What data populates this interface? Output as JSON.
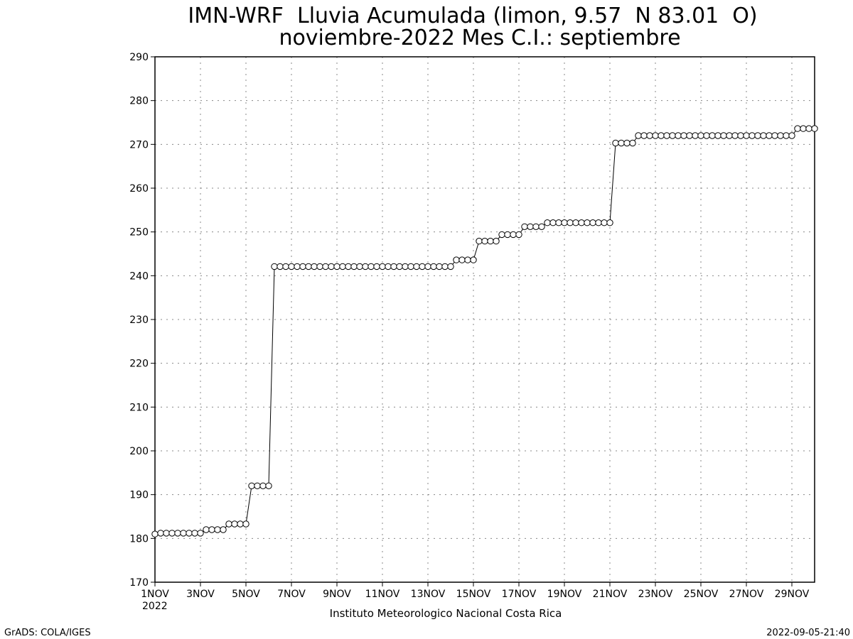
{
  "chart_data": {
    "type": "line",
    "title_line1": "IMN-WRF  Lluvia Acumulada (limon, 9.57  N 83.01  O)",
    "title_line2": "noviembre-2022 Mes C.I.: septiembre",
    "xlabel": "",
    "ylabel": "",
    "ylim": [
      170,
      290
    ],
    "yticks": [
      170,
      180,
      190,
      200,
      210,
      220,
      230,
      240,
      250,
      260,
      270,
      280,
      290
    ],
    "xlim": [
      1,
      30
    ],
    "xticks": [
      {
        "day": 1,
        "label": "1NOV"
      },
      {
        "day": 3,
        "label": "3NOV"
      },
      {
        "day": 5,
        "label": "5NOV"
      },
      {
        "day": 7,
        "label": "7NOV"
      },
      {
        "day": 9,
        "label": "9NOV"
      },
      {
        "day": 11,
        "label": "11NOV"
      },
      {
        "day": 13,
        "label": "13NOV"
      },
      {
        "day": 15,
        "label": "15NOV"
      },
      {
        "day": 17,
        "label": "17NOV"
      },
      {
        "day": 19,
        "label": "19NOV"
      },
      {
        "day": 21,
        "label": "21NOV"
      },
      {
        "day": 23,
        "label": "23NOV"
      },
      {
        "day": 25,
        "label": "25NOV"
      },
      {
        "day": 27,
        "label": "27NOV"
      },
      {
        "day": 29,
        "label": "29NOV"
      }
    ],
    "year_label": "2022",
    "grid": true,
    "marker": "open-circle",
    "series": [
      {
        "x": [
          1.0,
          1.25,
          1.5,
          1.75,
          2.0,
          2.25,
          2.5,
          2.75,
          3.0,
          3.25,
          3.5,
          3.75,
          4.0,
          4.25,
          4.5,
          4.75,
          5.0,
          5.25,
          5.5,
          5.75,
          6.0,
          6.25,
          6.5,
          6.75,
          7.0,
          7.25,
          7.5,
          7.75,
          8.0,
          8.25,
          8.5,
          8.75,
          9.0,
          9.25,
          9.5,
          9.75,
          10.0,
          10.25,
          10.5,
          10.75,
          11.0,
          11.25,
          11.5,
          11.75,
          12.0,
          12.25,
          12.5,
          12.75,
          13.0,
          13.25,
          13.5,
          13.75,
          14.0,
          14.25,
          14.5,
          14.75,
          15.0,
          15.25,
          15.5,
          15.75,
          16.0,
          16.25,
          16.5,
          16.75,
          17.0,
          17.25,
          17.5,
          17.75,
          18.0,
          18.25,
          18.5,
          18.75,
          19.0,
          19.25,
          19.5,
          19.75,
          20.0,
          20.25,
          20.5,
          20.75,
          21.0,
          21.25,
          21.5,
          21.75,
          22.0,
          22.25,
          22.5,
          22.75,
          23.0,
          23.25,
          23.5,
          23.75,
          24.0,
          24.25,
          24.5,
          24.75,
          25.0,
          25.25,
          25.5,
          25.75,
          26.0,
          26.25,
          26.5,
          26.75,
          27.0,
          27.25,
          27.5,
          27.75,
          28.0,
          28.25,
          28.5,
          28.75,
          29.0,
          29.25,
          29.5,
          29.75,
          30.0
        ],
        "y": [
          181.0,
          181.2,
          181.2,
          181.2,
          181.2,
          181.2,
          181.2,
          181.2,
          181.2,
          182.0,
          182.0,
          182.0,
          182.0,
          183.3,
          183.3,
          183.3,
          183.3,
          192.0,
          192.0,
          192.0,
          192.0,
          242.1,
          242.1,
          242.1,
          242.1,
          242.1,
          242.1,
          242.1,
          242.1,
          242.1,
          242.1,
          242.1,
          242.1,
          242.1,
          242.1,
          242.1,
          242.1,
          242.1,
          242.1,
          242.1,
          242.1,
          242.1,
          242.1,
          242.1,
          242.1,
          242.1,
          242.1,
          242.1,
          242.1,
          242.1,
          242.1,
          242.1,
          242.1,
          243.6,
          243.6,
          243.6,
          243.6,
          247.9,
          247.9,
          247.9,
          247.9,
          249.4,
          249.4,
          249.4,
          249.4,
          251.2,
          251.2,
          251.2,
          251.2,
          252.1,
          252.1,
          252.1,
          252.1,
          252.1,
          252.1,
          252.1,
          252.1,
          252.1,
          252.1,
          252.1,
          252.1,
          270.3,
          270.3,
          270.3,
          270.3,
          272.0,
          272.0,
          272.0,
          272.0,
          272.0,
          272.0,
          272.0,
          272.0,
          272.0,
          272.0,
          272.0,
          272.0,
          272.0,
          272.0,
          272.0,
          272.0,
          272.0,
          272.0,
          272.0,
          272.0,
          272.0,
          272.0,
          272.0,
          272.0,
          272.0,
          272.0,
          272.0,
          272.0,
          273.6,
          273.6,
          273.6,
          273.6
        ]
      }
    ]
  },
  "footer": {
    "institution": "Instituto Meteorologico Nacional Costa Rica",
    "software": "GrADS: COLA/IGES",
    "timestamp": "2022-09-05-21:40"
  }
}
